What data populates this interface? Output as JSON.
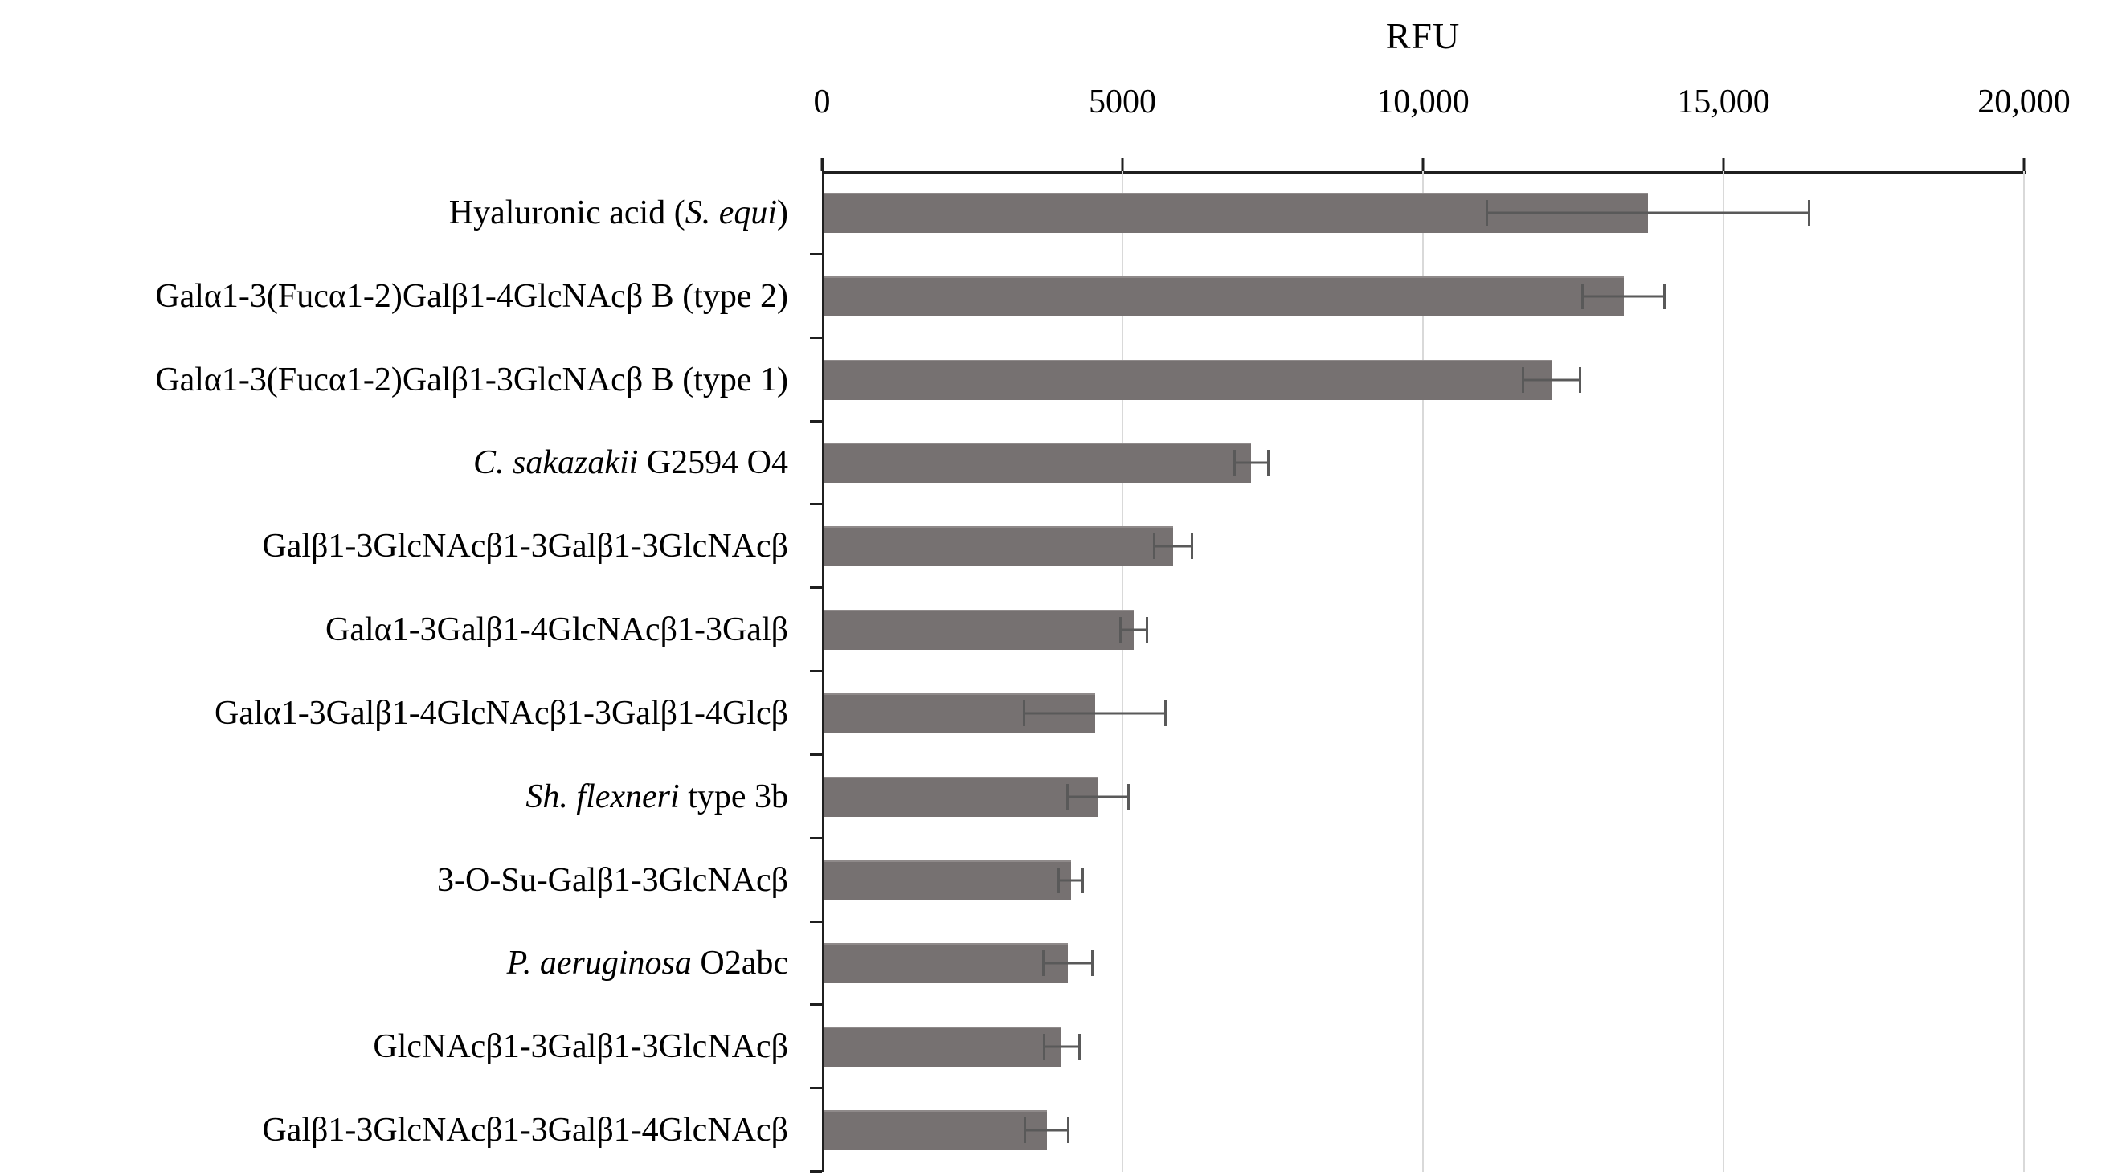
{
  "chart_data": {
    "type": "bar",
    "orientation": "horizontal",
    "title": "RFU",
    "xlabel": "RFU",
    "ylabel": "",
    "grid": "vertical-light",
    "legend": "none",
    "bar_color": "#767171",
    "error_bar_color": "#595959",
    "axis_color": "#1f1f1f",
    "gridline_color": "#d9d9d9",
    "x_axis": {
      "min": 0,
      "max": 20000,
      "ticks": [
        0,
        5000,
        10000,
        15000,
        20000
      ],
      "tick_labels": [
        "0",
        "5000",
        "10,000",
        "15,000",
        "20,000"
      ]
    },
    "categories": [
      {
        "label": "Hyaluronic acid (S. equi)",
        "parts": [
          {
            "text": "Hyaluronic acid (",
            "italic": false
          },
          {
            "text": "S. equi",
            "italic": true
          },
          {
            "text": ")",
            "italic": false
          }
        ],
        "value": 13700,
        "error": 2700
      },
      {
        "label": "Galα1-3(Fucα1-2)Galβ1-4GlcNAcβ B (type 2)",
        "parts": [
          {
            "text": "Galα1-3(Fucα1-2)Galβ1-4GlcNAcβ B (type 2)",
            "italic": false
          }
        ],
        "value": 13300,
        "error": 700
      },
      {
        "label": "Galα1-3(Fucα1-2)Galβ1-3GlcNAcβ B (type 1)",
        "parts": [
          {
            "text": "Galα1-3(Fucα1-2)Galβ1-3GlcNAcβ B (type 1)",
            "italic": false
          }
        ],
        "value": 12100,
        "error": 500
      },
      {
        "label": "C. sakazakii G2594 O4",
        "parts": [
          {
            "text": "C. sakazakii",
            "italic": true
          },
          {
            "text": " G2594 O4",
            "italic": false
          }
        ],
        "value": 7100,
        "error": 300
      },
      {
        "label": "Galβ1-3GlcNAcβ1-3Galβ1-3GlcNAcβ",
        "parts": [
          {
            "text": "Galβ1-3GlcNAcβ1-3Galβ1-3GlcNAcβ",
            "italic": false
          }
        ],
        "value": 5800,
        "error": 330
      },
      {
        "label": "Galα1-3Galβ1-4GlcNAcβ1-3Galβ",
        "parts": [
          {
            "text": "Galα1-3Galβ1-4GlcNAcβ1-3Galβ",
            "italic": false
          }
        ],
        "value": 5150,
        "error": 240
      },
      {
        "label": "Galα1-3Galβ1-4GlcNAcβ1-3Galβ1-4Glcβ",
        "parts": [
          {
            "text": "Galα1-3Galβ1-4GlcNAcβ1-3Galβ1-4Glcβ",
            "italic": false
          }
        ],
        "value": 4500,
        "error": 1200
      },
      {
        "label": "Sh. flexneri type 3b",
        "parts": [
          {
            "text": "Sh. flexneri",
            "italic": true
          },
          {
            "text": " type 3b",
            "italic": false
          }
        ],
        "value": 4550,
        "error": 530
      },
      {
        "label": "3-O-Su-Galβ1-3GlcNAcβ",
        "parts": [
          {
            "text": "3-O-Su-Galβ1-3GlcNAcβ",
            "italic": false
          }
        ],
        "value": 4100,
        "error": 220
      },
      {
        "label": "P. aeruginosa O2abc",
        "parts": [
          {
            "text": "P. aeruginosa",
            "italic": true
          },
          {
            "text": " O2abc",
            "italic": false
          }
        ],
        "value": 4050,
        "error": 430
      },
      {
        "label": "GlcNAcβ1-3Galβ1-3GlcNAcβ",
        "parts": [
          {
            "text": "GlcNAcβ1-3Galβ1-3GlcNAcβ",
            "italic": false
          }
        ],
        "value": 3950,
        "error": 320
      },
      {
        "label": "Galβ1-3GlcNAcβ1-3Galβ1-4GlcNAcβ",
        "parts": [
          {
            "text": "Galβ1-3GlcNAcβ1-3Galβ1-4GlcNAcβ",
            "italic": false
          }
        ],
        "value": 3700,
        "error": 380
      }
    ]
  }
}
